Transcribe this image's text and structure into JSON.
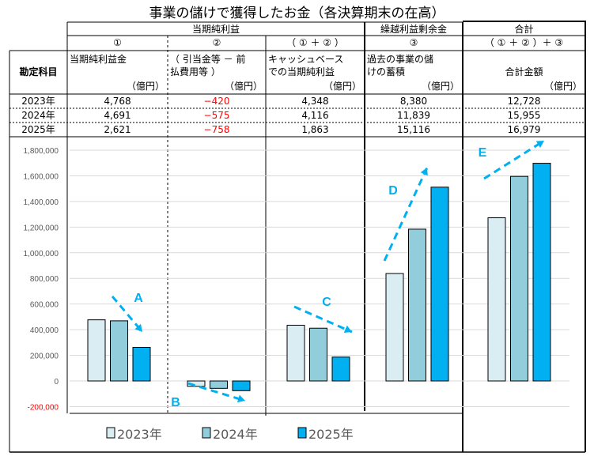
{
  "title": "事業の儲けで獲得したお金（各決算期末の在高）",
  "table": {
    "row_header": "勘定科目",
    "groups": [
      "当期純利益",
      "繰越利益剰余金",
      "合計"
    ],
    "cols": [
      {
        "num": "①",
        "label1": "当期純利益金",
        "label2": "",
        "unit": "（億円）"
      },
      {
        "num": "②",
        "label1": "（ 引当金等 － 前",
        "label2": "払費用等 ）",
        "unit": "（億円）"
      },
      {
        "num": "（ ① ＋ ② ）",
        "label1": "キャッシュベース",
        "label2": "での当期純利益",
        "unit": "（億円）"
      },
      {
        "num": "③",
        "label1": "過去の事業の儲",
        "label2": "けの蓄積",
        "unit": "（億円）"
      },
      {
        "num": "（ ① ＋ ② ）＋ ③",
        "label1": "合計金額",
        "label2": "",
        "unit": "（億円）"
      }
    ],
    "rows": [
      {
        "year": "2023年",
        "values": [
          "4,768",
          "−420",
          "4,348",
          "8,380",
          "12,728"
        ]
      },
      {
        "year": "2024年",
        "values": [
          "4,691",
          "−575",
          "4,116",
          "11,839",
          "15,955"
        ]
      },
      {
        "year": "2025年",
        "values": [
          "2,621",
          "−758",
          "1,863",
          "15,116",
          "16,979"
        ]
      }
    ]
  },
  "chart_data": {
    "type": "bar",
    "categories": [
      "①",
      "②",
      "①+②",
      "③",
      "(①+②)+③"
    ],
    "series": [
      {
        "name": "2023年",
        "color": "#daedf3",
        "values": [
          476800,
          -42000,
          434800,
          838000,
          1272800
        ]
      },
      {
        "name": "2024年",
        "color": "#92cddc",
        "values": [
          469100,
          -57500,
          411600,
          1183900,
          1595500
        ]
      },
      {
        "name": "2025年",
        "color": "#00b0f0",
        "values": [
          262100,
          -75800,
          186300,
          1511600,
          1697900
        ]
      }
    ],
    "ylim": [
      -200000,
      1800000
    ],
    "yticks": [
      "1,800,000",
      "1,600,000",
      "1,400,000",
      "1,200,000",
      "1,000,000",
      "800,000",
      "600,000",
      "400,000",
      "200,000",
      "0",
      "-200,000"
    ],
    "ytick_values": [
      1800000,
      1600000,
      1400000,
      1200000,
      1000000,
      800000,
      600000,
      400000,
      200000,
      0,
      -200000
    ],
    "annotations": [
      "A",
      "B",
      "C",
      "D",
      "E"
    ],
    "legend": "bottom",
    "accent": "#00b0f0",
    "negative_color": "#ff0000"
  }
}
